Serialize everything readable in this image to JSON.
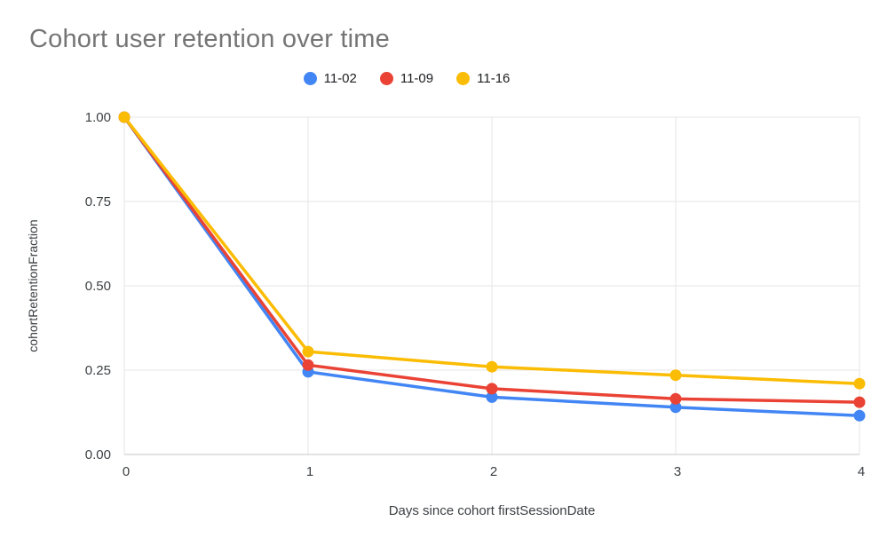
{
  "chart_data": {
    "type": "line",
    "title": "Cohort user retention over time",
    "xlabel": "Days since cohort firstSessionDate",
    "ylabel": "cohortRetentionFraction",
    "x": [
      0,
      1,
      2,
      3,
      4
    ],
    "xlim": [
      0,
      4
    ],
    "ylim": [
      0,
      1
    ],
    "xtick_labels": [
      "0",
      "1",
      "2",
      "3",
      "4"
    ],
    "yticks": [
      0,
      0.25,
      0.5,
      0.75,
      1
    ],
    "ytick_labels": [
      "0.00",
      "0.25",
      "0.50",
      "0.75",
      "1.00"
    ],
    "grid": true,
    "legend_position": "top-center",
    "marker_radius": 6.5,
    "line_width": 3.5,
    "series": [
      {
        "name": "11-02",
        "color": "#4285F4",
        "values": [
          1.0,
          0.245,
          0.17,
          0.14,
          0.115
        ]
      },
      {
        "name": "11-09",
        "color": "#EA4335",
        "values": [
          1.0,
          0.265,
          0.195,
          0.165,
          0.155
        ]
      },
      {
        "name": "11-16",
        "color": "#FBBC04",
        "values": [
          1.0,
          0.305,
          0.26,
          0.235,
          0.21
        ]
      }
    ]
  }
}
